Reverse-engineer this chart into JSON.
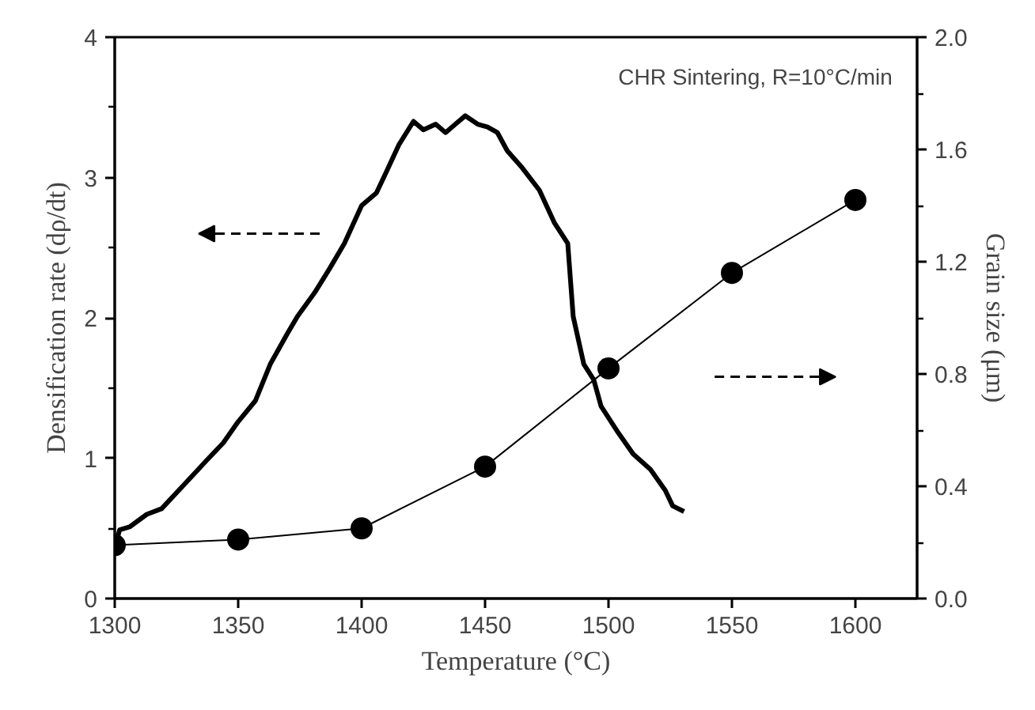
{
  "chart_data": {
    "type": "line",
    "xlabel": "Temperature (°C)",
    "ylabel": "Densification rate (dρ/dt)",
    "y2label": "Grain size (μm)",
    "annotations": [
      "CHR Sintering, R=10°C/min"
    ],
    "xlim": [
      1300,
      1625
    ],
    "xticks": [
      1300,
      1350,
      1400,
      1450,
      1500,
      1550,
      1600
    ],
    "ylim": [
      0,
      4
    ],
    "yticks": [
      0,
      {
        "value": 0.5,
        "label": null
      },
      1,
      {
        "value": 1.5,
        "label": null
      },
      2,
      {
        "value": 2.5,
        "label": null
      },
      3,
      {
        "value": 3.5,
        "label": null
      },
      4
    ],
    "y2lim": [
      0,
      2
    ],
    "y2ticks": [
      {
        "value": 0,
        "label": "0.0"
      },
      {
        "value": 0.2,
        "label": null
      },
      {
        "value": 0.4,
        "label": "0.4"
      },
      {
        "value": 0.6,
        "label": null
      },
      {
        "value": 0.8,
        "label": "0.8"
      },
      {
        "value": 1.0,
        "label": null
      },
      {
        "value": 1.2,
        "label": "1.2"
      },
      {
        "value": 1.4,
        "label": null
      },
      {
        "value": 1.6,
        "label": "1.6"
      },
      {
        "value": 1.8,
        "label": null
      },
      {
        "value": 2.0,
        "label": "2.0"
      }
    ],
    "series": [
      {
        "color": "#000000",
        "marker": "none",
        "x": [
          1300.4,
          1302,
          1306,
          1313,
          1319,
          1328,
          1337,
          1344,
          1350,
          1357,
          1363,
          1370,
          1374,
          1381,
          1387,
          1393,
          1400,
          1406,
          1410,
          1415,
          1421,
          1425,
          1430,
          1434,
          1438,
          1442,
          1447,
          1451,
          1455,
          1459,
          1465,
          1472,
          1478,
          1483.5,
          1485.7,
          1490,
          1494,
          1497,
          1504,
          1510,
          1517,
          1523,
          1526,
          1530.6
        ],
        "values": [
          0.39,
          0.49,
          0.51,
          0.6,
          0.64,
          0.81,
          0.98,
          1.11,
          1.26,
          1.41,
          1.67,
          1.89,
          2.01,
          2.18,
          2.35,
          2.53,
          2.8,
          2.89,
          3.04,
          3.23,
          3.4,
          3.34,
          3.38,
          3.32,
          3.38,
          3.44,
          3.38,
          3.36,
          3.32,
          3.19,
          3.07,
          2.91,
          2.68,
          2.53,
          2.01,
          1.67,
          1.56,
          1.37,
          1.18,
          1.03,
          0.92,
          0.77,
          0.66,
          0.62
        ]
      },
      {
        "color": "#000000",
        "marker": "circle",
        "axis": "y2",
        "x": [
          1300,
          1350,
          1400,
          1450,
          1500,
          1550,
          1600
        ],
        "values": [
          0.19,
          0.21,
          0.25,
          0.47,
          0.82,
          1.16,
          1.42
        ]
      }
    ]
  }
}
